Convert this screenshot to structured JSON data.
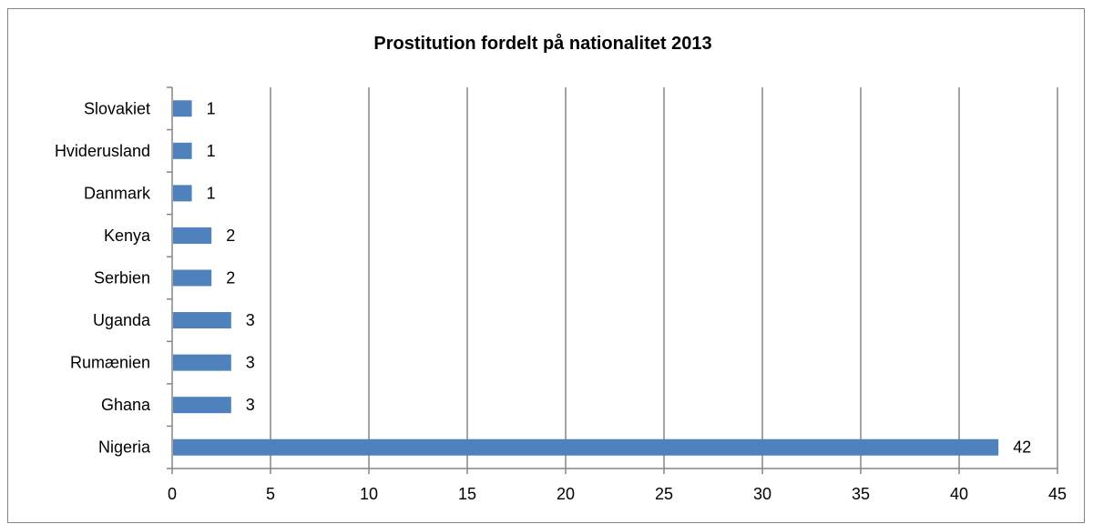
{
  "chart_data": {
    "type": "bar",
    "orientation": "horizontal",
    "title": "Prostitution fordelt på nationalitet 2013",
    "xlabel": "",
    "ylabel": "",
    "categories": [
      "Nigeria",
      "Ghana",
      "Rumænien",
      "Uganda",
      "Serbien",
      "Kenya",
      "Danmark",
      "Hviderusland",
      "Slovakiet"
    ],
    "values": [
      42,
      3,
      3,
      3,
      2,
      2,
      1,
      1,
      1
    ],
    "xlim": [
      0,
      45
    ],
    "x_ticks": [
      "0",
      "5",
      "10",
      "15",
      "20",
      "25",
      "30",
      "35",
      "40",
      "45"
    ],
    "data_labels": [
      "42",
      "3",
      "3",
      "3",
      "2",
      "2",
      "1",
      "1",
      "1"
    ],
    "grid": "vertical",
    "legend": "none",
    "bar_color": "#4F81BD"
  }
}
